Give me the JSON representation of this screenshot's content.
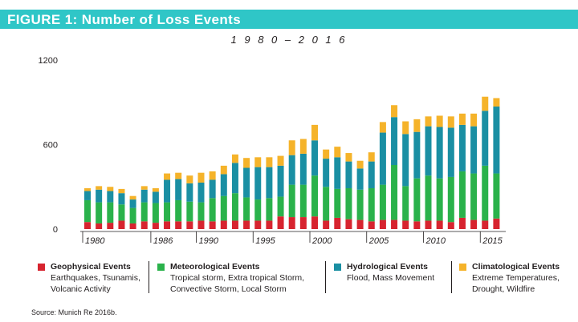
{
  "banner": {
    "title": "FIGURE 1: Number of Loss Events"
  },
  "colors": {
    "banner": "#2fc6c7",
    "geophysical": "#d7242f",
    "meteorological": "#2ab24b",
    "hydrological": "#1a8fa3",
    "climatological": "#f5b32a"
  },
  "chart_data": {
    "type": "bar",
    "stacked": true,
    "title": "",
    "subtitle": "1 9 8 0 – 2 0 1 6",
    "xlabel": "",
    "ylabel": "",
    "ylim": [
      0,
      1200
    ],
    "yticks": [
      "0",
      "600",
      "1200"
    ],
    "xtick_labels": [
      "1980",
      "1986",
      "1990",
      "1995",
      "2000",
      "2005",
      "2010",
      "2015"
    ],
    "grid": false,
    "categories": [
      1980,
      1981,
      1982,
      1983,
      1984,
      1985,
      1986,
      1987,
      1988,
      1989,
      1990,
      1991,
      1992,
      1993,
      1994,
      1995,
      1996,
      1997,
      1998,
      1999,
      2000,
      2001,
      2002,
      2003,
      2004,
      2005,
      2006,
      2007,
      2008,
      2009,
      2010,
      2011,
      2012,
      2013,
      2014,
      2015,
      2016
    ],
    "series": [
      {
        "name": "Geophysical Events",
        "color": "#d7242f",
        "values": [
          50,
          40,
          45,
          60,
          40,
          55,
          45,
          55,
          55,
          55,
          60,
          55,
          60,
          60,
          60,
          60,
          60,
          90,
          85,
          85,
          90,
          60,
          80,
          70,
          65,
          55,
          65,
          65,
          60,
          55,
          60,
          60,
          50,
          80,
          65,
          60,
          75
        ]
      },
      {
        "name": "Meteorological Events",
        "color": "#2ab24b",
        "values": [
          155,
          150,
          145,
          115,
          110,
          135,
          140,
          135,
          150,
          140,
          130,
          165,
          175,
          195,
          165,
          150,
          160,
          140,
          230,
          230,
          290,
          240,
          205,
          220,
          215,
          235,
          250,
          390,
          245,
          305,
          320,
          300,
          320,
          330,
          330,
          390,
          320
        ]
      },
      {
        "name": "Hydrological Events",
        "color": "#1a8fa3",
        "values": [
          65,
          90,
          80,
          80,
          60,
          90,
          80,
          160,
          150,
          130,
          140,
          130,
          155,
          215,
          210,
          230,
          220,
          220,
          210,
          220,
          250,
          200,
          225,
          190,
          150,
          190,
          370,
          340,
          370,
          330,
          350,
          365,
          350,
          330,
          335,
          390,
          475
        ]
      },
      {
        "name": "Climatological Events",
        "color": "#f5b32a",
        "values": [
          20,
          25,
          30,
          30,
          25,
          25,
          25,
          45,
          45,
          55,
          70,
          60,
          60,
          60,
          70,
          70,
          70,
          70,
          105,
          105,
          110,
          65,
          75,
          60,
          55,
          65,
          75,
          85,
          90,
          90,
          70,
          80,
          80,
          80,
          90,
          100,
          60
        ]
      }
    ],
    "legend_position": "bottom"
  },
  "legend": [
    {
      "name": "Geophysical Events",
      "lines": [
        "Earthquakes, Tsunamis,",
        "Volcanic Activity"
      ]
    },
    {
      "name": "Meteorological Events",
      "lines": [
        "Tropical storm, Extra tropical Storm,",
        "Convective Storm, Local Storm"
      ]
    },
    {
      "name": "Hydrological Events",
      "lines": [
        "Flood, Mass Movement"
      ]
    },
    {
      "name": "Climatological Events",
      "lines": [
        "Extreme Temperatures,",
        "Drought, Wildfire"
      ]
    }
  ],
  "source": "Source: Munich Re 2016b."
}
